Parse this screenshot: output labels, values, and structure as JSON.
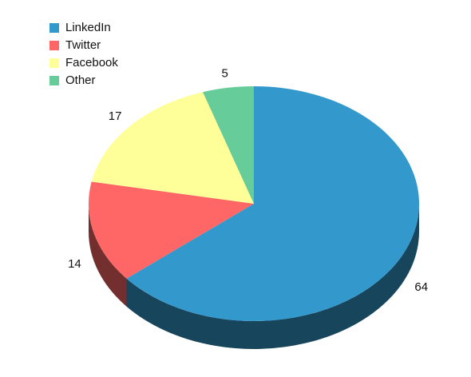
{
  "chart_data": {
    "type": "pie",
    "categories": [
      "LinkedIn",
      "Twitter",
      "Facebook",
      "Other"
    ],
    "values": [
      64,
      14,
      17,
      5
    ],
    "colors": [
      "#3399cc",
      "#ff6666",
      "#ffff99",
      "#66cc99"
    ],
    "legend": "top-left"
  }
}
